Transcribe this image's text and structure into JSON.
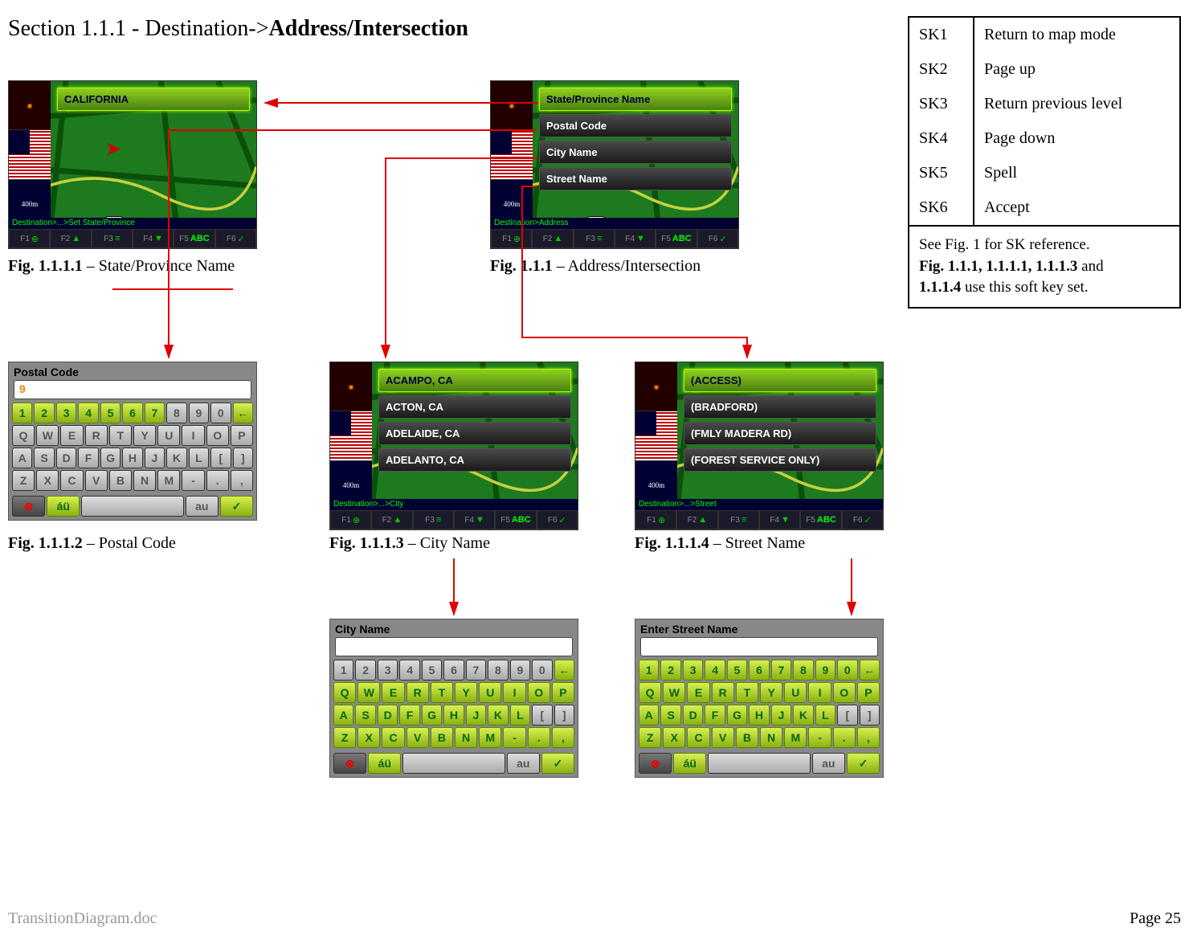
{
  "section": {
    "prefix": "Section 1.1.1 - ",
    "path": "Destination->",
    "leaf": "Address/Intersection"
  },
  "sk": {
    "rows": [
      {
        "k": "SK1",
        "v": "Return to map mode"
      },
      {
        "k": "SK2",
        "v": "Page up"
      },
      {
        "k": "SK3",
        "v": "Return previous level"
      },
      {
        "k": "SK4",
        "v": "Page down"
      },
      {
        "k": "SK5",
        "v": "Spell"
      },
      {
        "k": "SK6",
        "v": "Accept"
      }
    ],
    "footer_l1": "See Fig. 1 for SK reference.",
    "footer_l2a": "Fig. 1.1.1, 1.1.1.1, 1.1.1.3",
    "footer_l2b": " and ",
    "footer_l3a": "1.1.1.4",
    "footer_l3b": " use this soft key set."
  },
  "fig_1111": {
    "caption_no": "Fig. 1.1.1.1",
    "caption_txt": " – State/Province Name",
    "items": [
      "CALIFORNIA"
    ],
    "breadcrumb": "Destination>...>Set State/Province",
    "sidebar_dist": "400m",
    "route": "101",
    "fn": [
      "F1",
      "F2",
      "F3",
      "F4",
      "F5",
      "F6"
    ],
    "abc": "ABC"
  },
  "fig_111": {
    "caption_no": "Fig. 1.1.1",
    "caption_txt": " – Address/Intersection",
    "items": [
      "State/Province Name",
      "Postal Code",
      "City Name",
      "Street Name"
    ],
    "breadcrumb": "Destination>Address",
    "sidebar_dist": "400m",
    "route": "101",
    "fn": [
      "F1",
      "F2",
      "F3",
      "F4",
      "F5",
      "F6"
    ],
    "abc": "ABC"
  },
  "fig_1112": {
    "caption_no": "Fig. 1.1.1.2",
    "caption_txt": " – Postal Code",
    "title": "Postal Code",
    "input": "9",
    "active_rows": [
      0
    ],
    "active_until": 6
  },
  "fig_1113": {
    "caption_no": "Fig. 1.1.1.3",
    "caption_txt": " – City Name",
    "items": [
      "ACAMPO, CA",
      "ACTON, CA",
      "ADELAIDE, CA",
      "ADELANTO, CA"
    ],
    "breadcrumb": "Destination>...>City",
    "sidebar_dist": "400m",
    "fn": [
      "F1",
      "F2",
      "F3",
      "F4",
      "F5",
      "F6"
    ],
    "abc": "ABC",
    "kbd_title": "City Name",
    "kbd_input": "",
    "kbd_active_rows": [
      1,
      2,
      3
    ]
  },
  "fig_1114": {
    "caption_no": "Fig. 1.1.1.4",
    "caption_txt": " – Street Name",
    "items": [
      "(ACCESS)",
      "(BRADFORD)",
      "(FMLY MADERA RD)",
      "(FOREST SERVICE ONLY)"
    ],
    "breadcrumb": "Destination>...>Street",
    "sidebar_dist": "400m",
    "fn": [
      "F1",
      "F2",
      "F3",
      "F4",
      "F5",
      "F6"
    ],
    "abc": "ABC",
    "kbd_title": "Enter Street Name",
    "kbd_input": "",
    "kbd_active_rows": [
      0,
      1,
      2,
      3
    ]
  },
  "keyboard": {
    "row0": [
      "1",
      "2",
      "3",
      "4",
      "5",
      "6",
      "7",
      "8",
      "9",
      "0",
      "←"
    ],
    "row1": [
      "Q",
      "W",
      "E",
      "R",
      "T",
      "Y",
      "U",
      "I",
      "O",
      "P"
    ],
    "row2": [
      "A",
      "S",
      "D",
      "F",
      "G",
      "H",
      "J",
      "K",
      "L",
      "[",
      "]"
    ],
    "row3": [
      "Z",
      "X",
      "C",
      "V",
      "B",
      "N",
      "M",
      "-",
      ".",
      ","
    ],
    "actions": {
      "cancel": "⊗",
      "accent": "áü",
      "space": "",
      "au": "au",
      "ok": "✓"
    }
  },
  "footer": {
    "left": "TransitionDiagram.doc",
    "right": "Page 25"
  },
  "arrows": {
    "color": "#e00000",
    "width": 2
  }
}
